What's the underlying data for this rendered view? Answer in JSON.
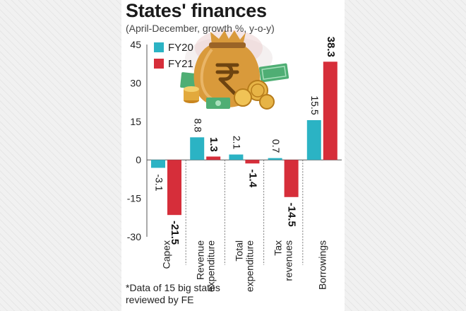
{
  "chart_data": {
    "type": "bar",
    "title": "States' finances",
    "subtitle": "(April-December, growth %, y-o-y)",
    "categories": [
      "Capex",
      "Revenue expenditure",
      "Total expenditure",
      "Tax revenues",
      "Borrowings"
    ],
    "category_lines": [
      [
        "Capex"
      ],
      [
        "Revenue",
        "expenditure"
      ],
      [
        "Total",
        "expenditure"
      ],
      [
        "Tax",
        "revenues"
      ],
      [
        "Borrowings"
      ]
    ],
    "series": [
      {
        "name": "FY20",
        "color": "#2bb3c4",
        "values": [
          -3.1,
          8.8,
          2.1,
          0.7,
          15.5
        ]
      },
      {
        "name": "FY21",
        "color": "#d62e3a",
        "values": [
          -21.5,
          1.3,
          -1.4,
          -14.5,
          38.3
        ]
      }
    ],
    "yticks": [
      45,
      30,
      15,
      0,
      -15,
      -30
    ],
    "ylim": [
      -30,
      45
    ],
    "legend_placement": "top-left",
    "footnote_lines": [
      "*Data of 15 big states",
      "reviewed by FE"
    ],
    "illustration": "money-bag-with-rupee-coins-icon"
  }
}
